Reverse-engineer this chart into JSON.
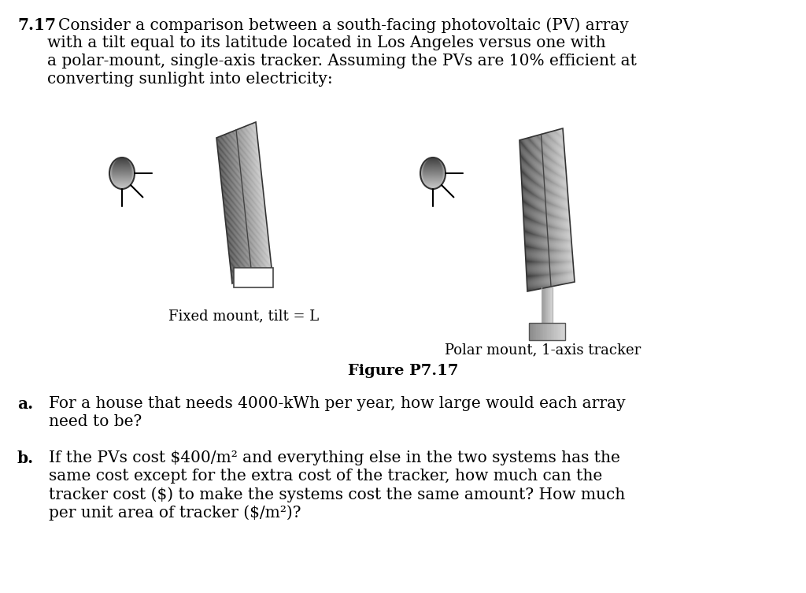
{
  "background_color": "#ffffff",
  "title_number": "7.17",
  "problem_text_line1": "Consider a comparison between a south-facing photovoltaic (PV) array",
  "problem_text_line2": "with a tilt equal to its latitude located in Los Angeles versus one with",
  "problem_text_line3": "a polar-mount, single-axis tracker. Assuming the PVs are 10% efficient at",
  "problem_text_line4": "converting sunlight into electricity:",
  "label_left": "Fixed mount, tilt = L",
  "label_right": "Polar mount, 1-axis tracker",
  "figure_caption": "Figure P7.17",
  "part_a_label": "a.",
  "part_a_text_line1": "For a house that needs 4000-kWh per year, how large would each array",
  "part_a_text_line2": "need to be?",
  "part_b_label": "b.",
  "part_b_text_line1": "If the PVs cost $400/m² and everything else in the two systems has the",
  "part_b_text_line2": "same cost except for the extra cost of the tracker, how much can the",
  "part_b_text_line3": "tracker cost ($) to make the systems cost the same amount? How much",
  "part_b_text_line4": "per unit area of tracker ($/m²)?"
}
